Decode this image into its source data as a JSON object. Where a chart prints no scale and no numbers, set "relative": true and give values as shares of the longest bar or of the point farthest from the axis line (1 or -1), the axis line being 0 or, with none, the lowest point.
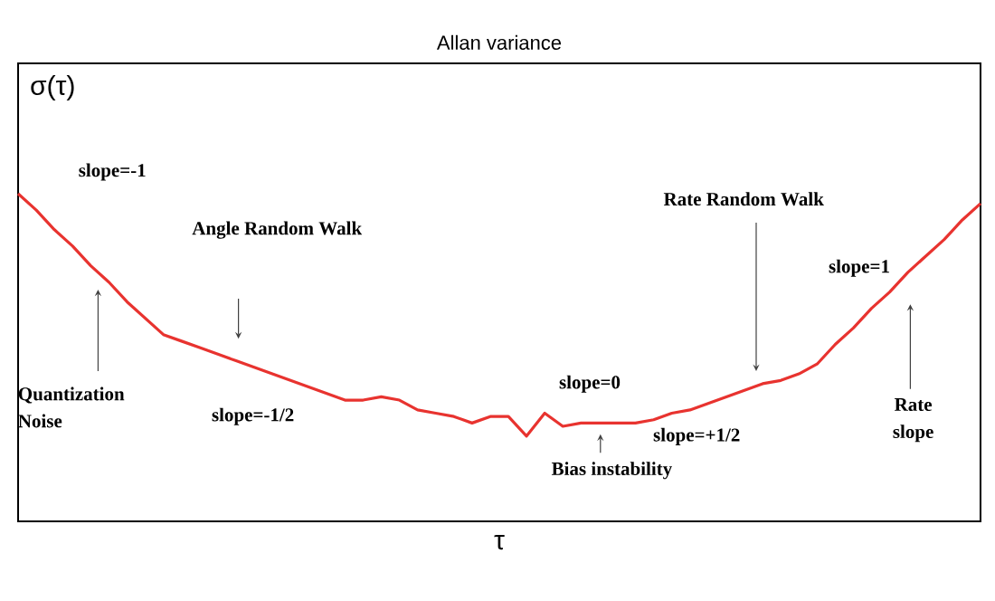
{
  "chart_data": {
    "type": "line",
    "title": "Allan variance",
    "xlabel": "τ",
    "ylabel": "σ(τ)",
    "relative": true,
    "color": "#e8332f",
    "categories": [
      null,
      null,
      null,
      null,
      null,
      null,
      null,
      null,
      null,
      null,
      null,
      null,
      null,
      null,
      null,
      null,
      null,
      null,
      null,
      null,
      null,
      null,
      null,
      null,
      null,
      null,
      null,
      null,
      null,
      null,
      null,
      null,
      null,
      null,
      null,
      null,
      null,
      null,
      null,
      null,
      null,
      null,
      null,
      null,
      null,
      null,
      null,
      null,
      null,
      null,
      null,
      null,
      null,
      null
    ],
    "values": [
      1.0,
      0.95,
      0.89,
      0.84,
      0.78,
      0.73,
      0.67,
      0.62,
      0.57,
      0.55,
      0.53,
      0.51,
      0.49,
      0.47,
      0.45,
      0.43,
      0.41,
      0.39,
      0.37,
      0.37,
      0.38,
      0.37,
      0.34,
      0.33,
      0.32,
      0.3,
      0.32,
      0.32,
      0.26,
      0.33,
      0.29,
      0.3,
      0.3,
      0.3,
      0.3,
      0.31,
      0.33,
      0.34,
      0.36,
      0.38,
      0.4,
      0.42,
      0.43,
      0.45,
      0.48,
      0.54,
      0.59,
      0.65,
      0.7,
      0.76,
      0.81,
      0.86,
      0.92,
      0.97
    ],
    "annotations": [
      "slope=-1",
      "Angle Random Walk",
      "Quantization Noise",
      "slope=-1/2",
      "slope=0",
      "Bias instability",
      "slope=+1/2",
      "Rate Random Walk",
      "slope=1",
      "Rate slope"
    ]
  }
}
